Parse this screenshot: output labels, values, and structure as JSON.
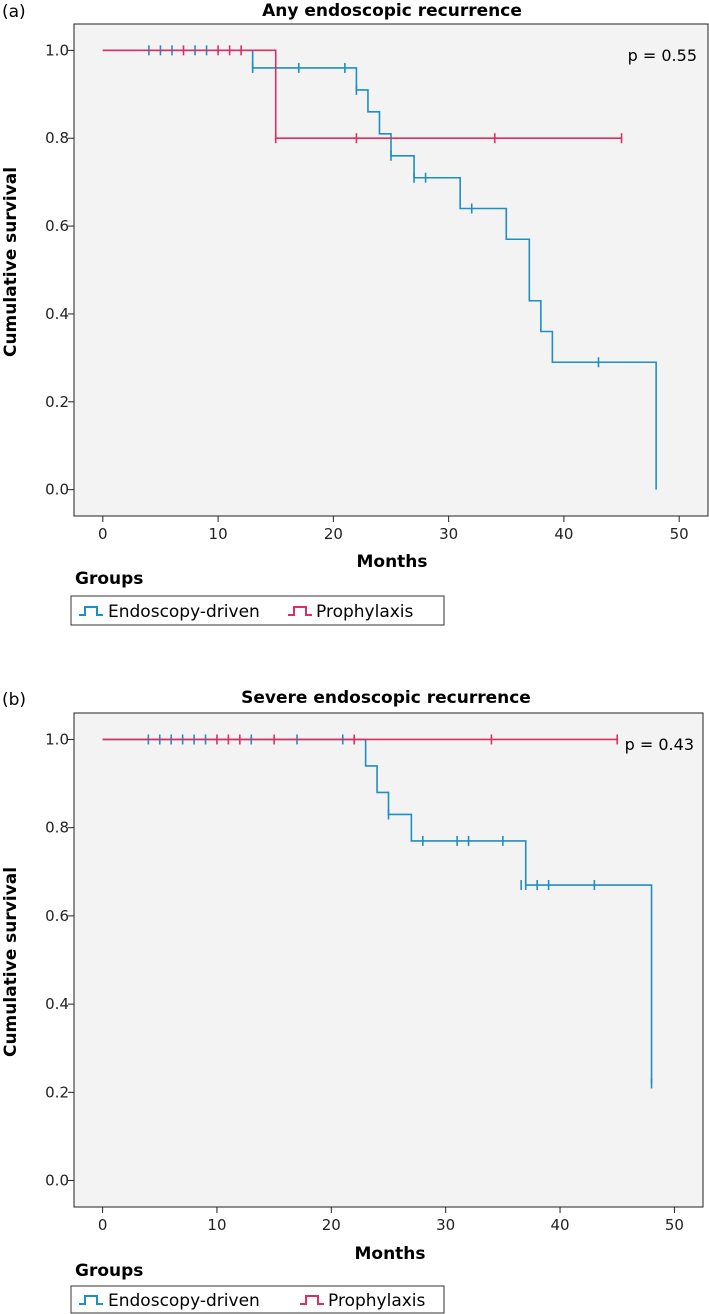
{
  "colors": {
    "endoscopy": "#1f8fc2",
    "prophylaxis": "#dd2f63",
    "plot_bg": "#f2f3f2"
  },
  "legend": {
    "title": "Groups",
    "items": [
      {
        "label": "Endoscopy-driven",
        "series": "endoscopy"
      },
      {
        "label": "Prophylaxis",
        "series": "prophylaxis"
      }
    ]
  },
  "chart_data": [
    {
      "type": "line",
      "panel": "(a)",
      "title": "Any endoscopic recurrence",
      "xlabel": "Months",
      "ylabel": "Cumulative survival",
      "annotation": "p = 0.55",
      "xlim": [
        -2.5,
        52.5
      ],
      "ylim": [
        -0.06,
        1.06
      ],
      "xticks": [
        0,
        10,
        20,
        30,
        40,
        50
      ],
      "yticks": [
        0.0,
        0.2,
        0.4,
        0.6,
        0.8,
        1.0
      ],
      "series": [
        {
          "key": "endoscopy",
          "steps": [
            [
              0,
              1.0
            ],
            [
              13,
              0.96
            ],
            [
              22,
              0.91
            ],
            [
              23,
              0.86
            ],
            [
              24,
              0.81
            ],
            [
              25,
              0.76
            ],
            [
              27,
              0.71
            ],
            [
              31,
              0.64
            ],
            [
              35,
              0.57
            ],
            [
              37,
              0.43
            ],
            [
              38,
              0.36
            ],
            [
              39,
              0.29
            ],
            [
              48,
              0.0
            ]
          ],
          "end_x": 48,
          "censored": [
            [
              4,
              1.0
            ],
            [
              5,
              1.0
            ],
            [
              6,
              1.0
            ],
            [
              8,
              1.0
            ],
            [
              9,
              1.0
            ],
            [
              13,
              0.96
            ],
            [
              17,
              0.96
            ],
            [
              21,
              0.96
            ],
            [
              22,
              0.91
            ],
            [
              25,
              0.76
            ],
            [
              27,
              0.71
            ],
            [
              28,
              0.71
            ],
            [
              32,
              0.64
            ],
            [
              43,
              0.29
            ]
          ]
        },
        {
          "key": "prophylaxis",
          "steps": [
            [
              0,
              1.0
            ],
            [
              15,
              0.8
            ]
          ],
          "end_x": 45,
          "censored": [
            [
              7,
              1.0
            ],
            [
              10,
              1.0
            ],
            [
              11,
              1.0
            ],
            [
              12,
              1.0
            ],
            [
              15,
              0.8
            ],
            [
              22,
              0.8
            ],
            [
              34,
              0.8
            ],
            [
              45,
              0.8
            ]
          ]
        }
      ]
    },
    {
      "type": "line",
      "panel": "(b)",
      "title": "Severe endoscopic recurrence",
      "xlabel": "Months",
      "ylabel": "Cumulative survival",
      "annotation": "p = 0.43",
      "xlim": [
        -2.5,
        52.5
      ],
      "ylim": [
        -0.06,
        1.06
      ],
      "xticks": [
        0,
        10,
        20,
        30,
        40,
        50
      ],
      "yticks": [
        0.0,
        0.2,
        0.4,
        0.6,
        0.8,
        1.0
      ],
      "series": [
        {
          "key": "endoscopy",
          "steps": [
            [
              0,
              1.0
            ],
            [
              23,
              0.94
            ],
            [
              24,
              0.88
            ],
            [
              25,
              0.83
            ],
            [
              27,
              0.77
            ],
            [
              37,
              0.67
            ],
            [
              48,
              0.22
            ]
          ],
          "end_x": 48,
          "censored": [
            [
              4,
              1.0
            ],
            [
              5,
              1.0
            ],
            [
              6,
              1.0
            ],
            [
              7,
              1.0
            ],
            [
              8,
              1.0
            ],
            [
              9,
              1.0
            ],
            [
              13,
              1.0
            ],
            [
              17,
              1.0
            ],
            [
              21,
              1.0
            ],
            [
              25,
              0.83
            ],
            [
              28,
              0.77
            ],
            [
              31,
              0.77
            ],
            [
              32,
              0.77
            ],
            [
              35,
              0.77
            ],
            [
              36.6,
              0.67
            ],
            [
              37,
              0.67
            ],
            [
              38,
              0.67
            ],
            [
              39,
              0.67
            ],
            [
              43,
              0.67
            ],
            [
              48,
              0.22
            ]
          ]
        },
        {
          "key": "prophylaxis",
          "steps": [
            [
              0,
              1.0
            ]
          ],
          "end_x": 45,
          "censored": [
            [
              10,
              1.0
            ],
            [
              11,
              1.0
            ],
            [
              12,
              1.0
            ],
            [
              15,
              1.0
            ],
            [
              22,
              1.0
            ],
            [
              34,
              1.0
            ],
            [
              45,
              1.0
            ]
          ]
        }
      ]
    }
  ]
}
